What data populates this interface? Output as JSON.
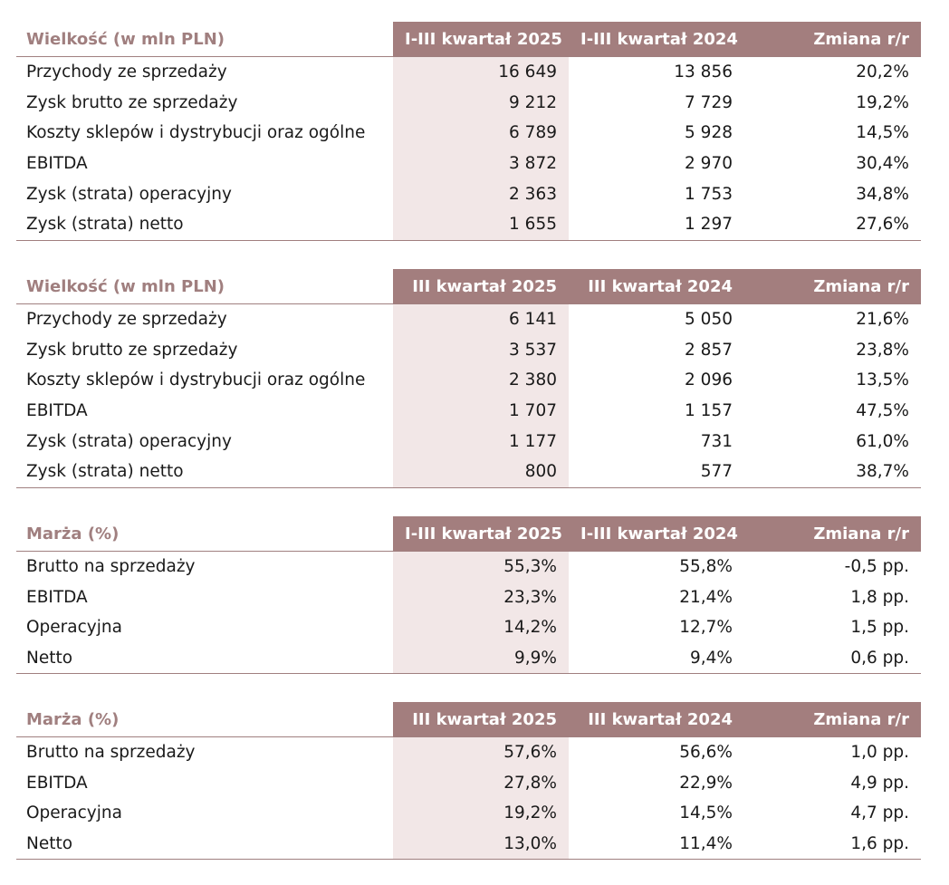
{
  "tables": [
    {
      "header": [
        "Wielkość (w mln PLN)",
        "I-III kwartał 2025",
        "I-III kwartał 2024",
        "Zmiana r/r"
      ],
      "rows": [
        [
          "Przychody ze sprzedaży",
          "16 649",
          "13 856",
          "20,2%"
        ],
        [
          "Zysk brutto ze sprzedaży",
          "9 212",
          "7 729",
          "19,2%"
        ],
        [
          "Koszty sklepów i dystrybucji oraz ogólne",
          "6 789",
          "5 928",
          "14,5%"
        ],
        [
          "EBITDA",
          "3 872",
          "2 970",
          "30,4%"
        ],
        [
          "Zysk (strata) operacyjny",
          "2 363",
          "1 753",
          "34,8%"
        ],
        [
          "Zysk (strata) netto",
          "1 655",
          "1 297",
          "27,6%"
        ]
      ]
    },
    {
      "header": [
        "Wielkość (w mln PLN)",
        "III kwartał 2025",
        "III kwartał 2024",
        "Zmiana r/r"
      ],
      "rows": [
        [
          "Przychody ze sprzedaży",
          "6 141",
          "5 050",
          "21,6%"
        ],
        [
          "Zysk brutto ze sprzedaży",
          "3 537",
          "2 857",
          "23,8%"
        ],
        [
          "Koszty sklepów i dystrybucji oraz ogólne",
          "2 380",
          "2 096",
          "13,5%"
        ],
        [
          "EBITDA",
          "1 707",
          "1 157",
          "47,5%"
        ],
        [
          "Zysk (strata) operacyjny",
          "1 177",
          "731",
          "61,0%"
        ],
        [
          "Zysk (strata) netto",
          "800",
          "577",
          "38,7%"
        ]
      ]
    },
    {
      "header": [
        "Marża (%)",
        "I-III kwartał 2025",
        "I-III kwartał 2024",
        "Zmiana r/r"
      ],
      "rows": [
        [
          "Brutto na sprzedaży",
          "55,3%",
          "55,8%",
          "-0,5 pp."
        ],
        [
          "EBITDA",
          "23,3%",
          "21,4%",
          "1,8 pp."
        ],
        [
          "Operacyjna",
          "14,2%",
          "12,7%",
          "1,5 pp."
        ],
        [
          "Netto",
          "9,9%",
          "9,4%",
          "0,6 pp."
        ]
      ]
    },
    {
      "header": [
        "Marża (%)",
        "III kwartał 2025",
        "III kwartał 2024",
        "Zmiana r/r"
      ],
      "rows": [
        [
          "Brutto na sprzedaży",
          "57,6%",
          "56,6%",
          "1,0 pp."
        ],
        [
          "EBITDA",
          "27,8%",
          "22,9%",
          "4,9 pp."
        ],
        [
          "Operacyjna",
          "19,2%",
          "14,5%",
          "4,7 pp."
        ],
        [
          "Netto",
          "13,0%",
          "11,4%",
          "1,6 pp."
        ]
      ]
    }
  ],
  "colors": {
    "header_bg": "#a37e7e",
    "label_color": "#a07f7f",
    "highlight_bg": "#f2e7e7"
  }
}
